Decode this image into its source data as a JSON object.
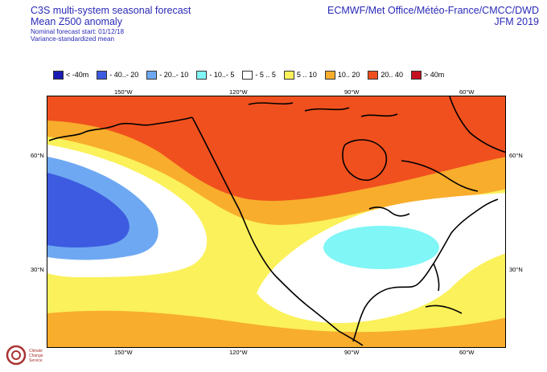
{
  "header": {
    "title_line1": "C3S multi-system seasonal forecast",
    "title_line2": "Mean Z500 anomaly",
    "start_line": "Nominal forecast start: 01/12/18",
    "method_line": "Variance-standardized mean",
    "source": "ECMWF/Met Office/Météo-France/CMCC/DWD",
    "season": "JFM 2019"
  },
  "legend": [
    {
      "label": "< -40m",
      "color": "#1a1ab4"
    },
    {
      "label": "- 40..- 20",
      "color": "#3d5be0"
    },
    {
      "label": "- 20..- 10",
      "color": "#6ea8f2"
    },
    {
      "label": "- 10..- 5",
      "color": "#80f6f6"
    },
    {
      "label": "- 5 .. 5",
      "color": "#ffffff"
    },
    {
      "label": "5 .. 10",
      "color": "#fbf15a"
    },
    {
      "label": "10.. 20",
      "color": "#f8ad2c"
    },
    {
      "label": "20.. 40",
      "color": "#f0501e"
    },
    {
      "label": "> 40m",
      "color": "#c41020"
    }
  ],
  "axes": {
    "lon_ticks": [
      "150°W",
      "120°W",
      "90°W",
      "60°W"
    ],
    "lat_ticks": [
      "60°N",
      "30°N"
    ]
  },
  "logo": {
    "line1": "Climate",
    "line2": "Change Service"
  }
}
